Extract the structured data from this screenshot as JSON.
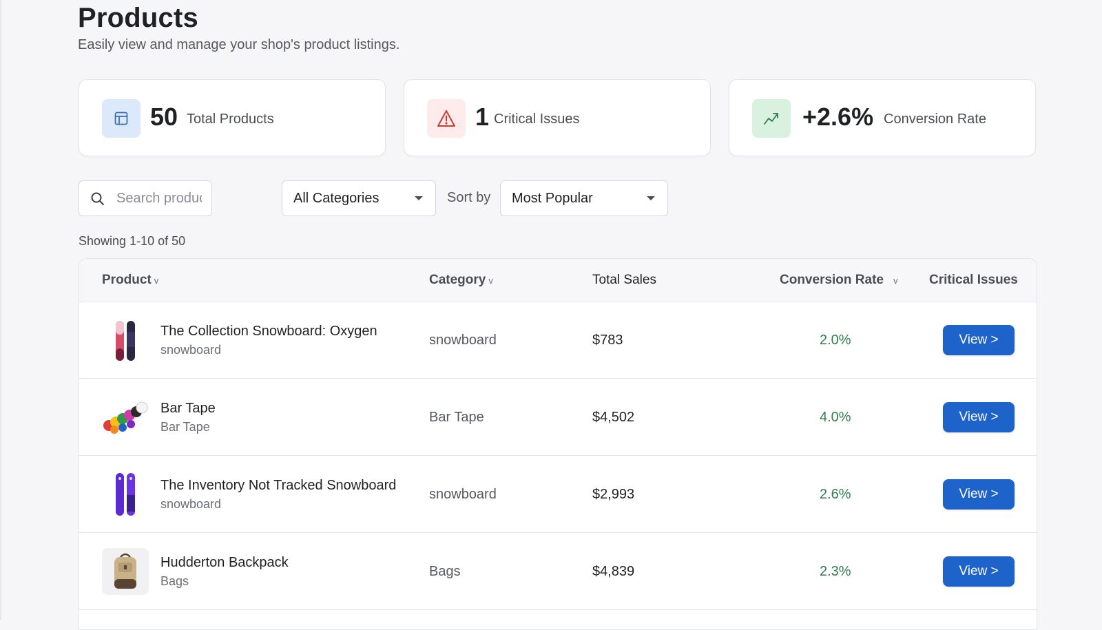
{
  "header": {
    "title": "Products",
    "subtitle": "Easily view and manage your shop's product listings."
  },
  "stats": [
    {
      "value": "50",
      "label": "Total Products",
      "icon": "table-layout-icon",
      "color": "#3b6fb6",
      "bg": "#dce9fb"
    },
    {
      "value": "1",
      "label": "Critical Issues",
      "icon": "warning-triangle-icon",
      "color": "#d03a2f",
      "bg": "#fdeceb"
    },
    {
      "value": "+2.6%",
      "label": "Conversion Rate",
      "icon": "trend-up-icon",
      "color": "#2f7d4e",
      "bg": "#d9f1df"
    }
  ],
  "filters": {
    "search_placeholder": "Search products",
    "category_selected": "All Categories",
    "sort_label": "Sort by",
    "sort_selected": "Most Popular"
  },
  "showing_text": "Showing 1-10 of 50",
  "table": {
    "columns": {
      "product": "Product",
      "category": "Category",
      "total_sales": "Total Sales",
      "conversion_rate": "Conversion Rate",
      "critical_issues": "Critical Issues"
    },
    "sort_indicator": "v",
    "rows": [
      {
        "name": "The Collection Snowboard: Oxygen",
        "subtitle": "snowboard",
        "category": "snowboard",
        "sales": "$783",
        "conversion": "2.0%",
        "action": "View >",
        "thumb": "snowboard-pink-image"
      },
      {
        "name": "Bar Tape",
        "subtitle": "Bar Tape",
        "category": "Bar Tape",
        "sales": "$4,502",
        "conversion": "4.0%",
        "action": "View >",
        "thumb": "bar-tape-rolls-image"
      },
      {
        "name": "The Inventory Not Tracked Snowboard",
        "subtitle": "snowboard",
        "category": "snowboard",
        "sales": "$2,993",
        "conversion": "2.6%",
        "action": "View >",
        "thumb": "snowboard-purple-image"
      },
      {
        "name": "Hudderton Backpack",
        "subtitle": "Bags",
        "category": "Bags",
        "sales": "$4,839",
        "conversion": "2.3%",
        "action": "View >",
        "thumb": "backpack-image"
      }
    ]
  }
}
